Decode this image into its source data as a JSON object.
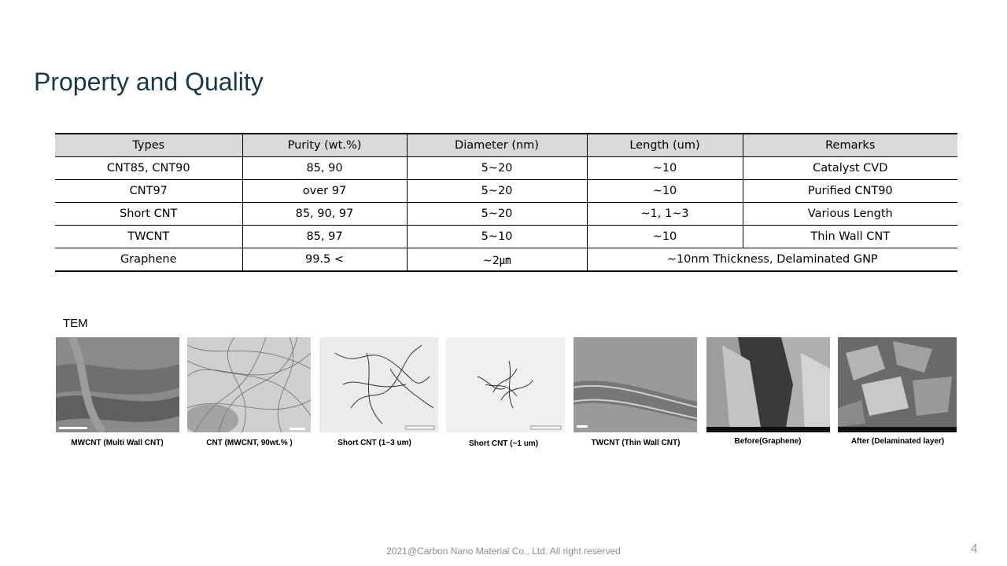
{
  "slide": {
    "title": "Property and Quality",
    "footer": "2021@Carbon Nano Material Co., Ltd. All right reserved",
    "page_number": "4"
  },
  "table": {
    "headers": [
      "Types",
      "Purity (wt.%)",
      "Diameter (nm)",
      "Length (um)",
      "Remarks"
    ],
    "rows": [
      [
        "CNT85, CNT90",
        "85, 90",
        "5~20",
        "~10",
        "Catalyst CVD"
      ],
      [
        "CNT97",
        "over 97",
        "5~20",
        "~10",
        "Purified CNT90"
      ],
      [
        "Short CNT",
        "85, 90, 97",
        "5~20",
        "~1,  1~3",
        "Various Length"
      ],
      [
        "TWCNT",
        "85, 97",
        "5~10",
        "~10",
        "Thin Wall CNT"
      ],
      [
        "Graphene",
        "99.5 <",
        "~2㎛",
        "~10nm Thickness, Delaminated GNP"
      ]
    ]
  },
  "tem": {
    "label": "TEM",
    "images": [
      {
        "caption": "MWCNT (Multi Wall CNT)"
      },
      {
        "caption": "CNT (MWCNT, 90wt.% )"
      },
      {
        "caption": "Short CNT (1~3 um)"
      },
      {
        "caption": "Short CNT (~1 um)"
      },
      {
        "caption": "TWCNT (Thin Wall CNT)"
      },
      {
        "caption": "Before(Graphene)"
      },
      {
        "caption": "After (Delaminated layer)"
      }
    ]
  }
}
